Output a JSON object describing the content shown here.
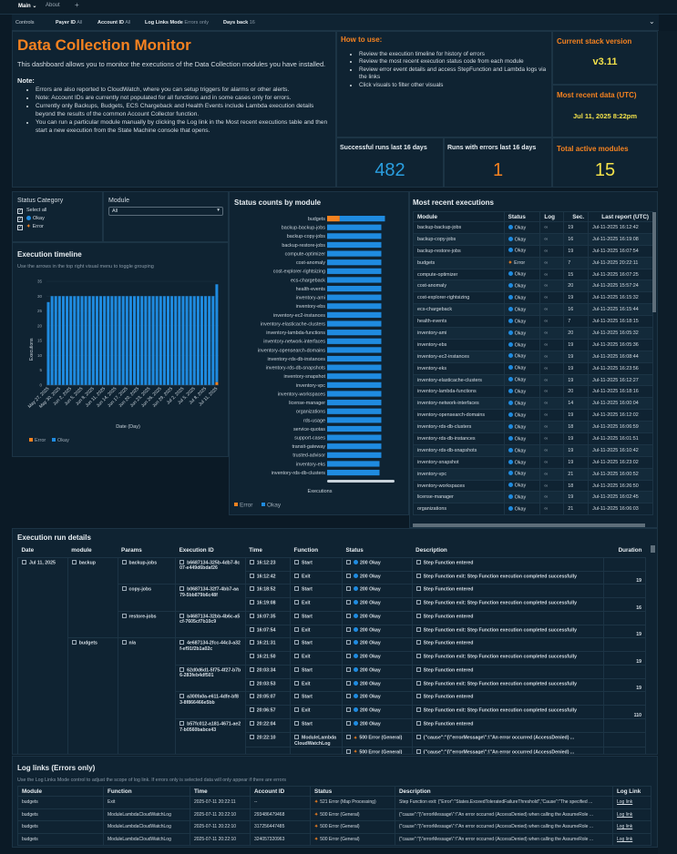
{
  "tabs": {
    "items": [
      "Main",
      "About"
    ],
    "add": "+"
  },
  "controls": {
    "label": "Controls",
    "payer_label": "Payer ID",
    "payer_value": "All",
    "account_label": "Account ID",
    "account_value": "All",
    "loglinks_label": "Log Links Mode",
    "loglinks_value": "Errors only",
    "days_label": "Days back",
    "days_value": "16"
  },
  "intro": {
    "title": "Data Collection Monitor",
    "description": "This dashboard allows you to monitor the executions of the Data Collection modules you have installed.",
    "note_label": "Note:",
    "notes": [
      "Errors are also reported to CloudWatch, where you can setup triggers for alarms or other alerts.",
      "Note: Account IDs are currently not populated for all functions and in some cases only for errors.",
      "Currently only Backups, Budgets, ECS Chargeback and Health Events include Lambda execution details beyond the results of the common Account Collector function.",
      "You can run a particular module manually by clicking the Log link in the Most recent executions table and then start a new execution from the State Machine console that opens."
    ]
  },
  "howto": {
    "title": "How to use:",
    "items": [
      "Review the execution timeline for history of errors",
      "Review the most recent execution status code from each module",
      "Review error event details and access StepFunction and Lambda logs via the links",
      "Click visuals to filter other visuals"
    ]
  },
  "kpis": {
    "version_label": "Current stack version",
    "version": "v3.11",
    "recent_label": "Most recent data (UTC)",
    "recent": "Jul 11, 2025 8:22pm",
    "success_label": "Successful runs last 16 days",
    "success": "482",
    "errors_label": "Runs with errors last 16 days",
    "errors": "1",
    "modules_label": "Total active modules",
    "modules": "15"
  },
  "colors": {
    "error": "#f58220",
    "okay": "#1f8be0",
    "accent_yellow": "#f2e14a"
  },
  "filters": {
    "status_label": "Status Category",
    "options": [
      "Select all",
      "Okay",
      "Error"
    ],
    "module_label": "Module",
    "module_value": "All"
  },
  "chart_data": [
    {
      "type": "bar",
      "title": "Execution timeline",
      "subtitle": "Use the arrows in the top right visual menu to toggle grouping",
      "xlabel": "Date (Day)",
      "ylabel": "Executions",
      "ylim": [
        0,
        35
      ],
      "yticks": [
        0,
        5,
        10,
        15,
        20,
        25,
        30,
        35
      ],
      "stacked": true,
      "categories": [
        "May 27, 2025",
        "May 28, 2025",
        "May 29, 2025",
        "May 30, 2025",
        "May 31, 2025",
        "Jun 1, 2025",
        "Jun 2, 2025",
        "Jun 3, 2025",
        "Jun 4, 2025",
        "Jun 5, 2025",
        "Jun 6, 2025",
        "Jun 7, 2025",
        "Jun 8, 2025",
        "Jun 9, 2025",
        "Jun 10, 2025",
        "Jun 11, 2025",
        "Jun 12, 2025",
        "Jun 13, 2025",
        "Jun 14, 2025",
        "Jun 15, 2025",
        "Jun 16, 2025",
        "Jun 17, 2025",
        "Jun 18, 2025",
        "Jun 19, 2025",
        "Jun 20, 2025",
        "Jun 21, 2025",
        "Jun 22, 2025",
        "Jun 23, 2025",
        "Jun 24, 2025",
        "Jun 25, 2025",
        "Jun 26, 2025",
        "Jun 27, 2025",
        "Jun 28, 2025",
        "Jun 29, 2025",
        "Jun 30, 2025",
        "Jul 1, 2025",
        "Jul 2, 2025",
        "Jul 3, 2025",
        "Jul 4, 2025",
        "Jul 5, 2025",
        "Jul 6, 2025",
        "Jul 7, 2025",
        "Jul 8, 2025",
        "Jul 9, 2025",
        "Jul 10, 2025",
        "Jul 11, 2025"
      ],
      "series": [
        {
          "name": "Error",
          "values": [
            0,
            0,
            0,
            0,
            0,
            0,
            0,
            0,
            0,
            0,
            0,
            0,
            0,
            0,
            0,
            0,
            0,
            0,
            0,
            0,
            0,
            0,
            0,
            0,
            0,
            0,
            0,
            0,
            0,
            0,
            0,
            0,
            0,
            0,
            0,
            0,
            0,
            0,
            0,
            0,
            0,
            0,
            0,
            0,
            0,
            1
          ]
        },
        {
          "name": "Okay",
          "values": [
            28,
            30,
            30,
            30,
            30,
            30,
            30,
            30,
            30,
            30,
            30,
            30,
            30,
            30,
            30,
            30,
            30,
            30,
            30,
            30,
            30,
            30,
            30,
            30,
            30,
            30,
            30,
            30,
            30,
            30,
            30,
            30,
            30,
            30,
            30,
            30,
            30,
            30,
            30,
            30,
            30,
            30,
            30,
            30,
            30,
            33
          ]
        }
      ],
      "legend": "bottom-left"
    },
    {
      "type": "bar",
      "orientation": "horizontal",
      "title": "Status counts by module",
      "xlabel": "Executions",
      "stacked": true,
      "categories": [
        "budgets",
        "backup-backup-jobs",
        "backup-copy-jobs",
        "backup-restore-jobs",
        "compute-optimizer",
        "cost-anomaly",
        "cost-explorer-rightsizing",
        "ecs-chargeback",
        "health-events",
        "inventory-ami",
        "inventory-ebs",
        "inventory-ec2-instances",
        "inventory-elasticache-clusters",
        "inventory-lambda-functions",
        "inventory-network-interfaces",
        "inventory-opensearch-domains",
        "inventory-rds-db-instances",
        "inventory-rds-db-snapshots",
        "inventory-snapshot",
        "inventory-vpc",
        "inventory-workspaces",
        "license-manager",
        "organizations",
        "rds-usage",
        "service-quotas",
        "support-cases",
        "transit-gateway",
        "trusted-advisor",
        "inventory-eks",
        "inventory-rds-db-clusters"
      ],
      "series": [
        {
          "name": "Error",
          "values": [
            7,
            0,
            0,
            0,
            0,
            0,
            0,
            0,
            0,
            0,
            0,
            0,
            0,
            0,
            0,
            0,
            0,
            0,
            0,
            0,
            0,
            0,
            0,
            0,
            0,
            0,
            0,
            0,
            0,
            0
          ]
        },
        {
          "name": "Okay",
          "values": [
            25,
            30,
            30,
            30,
            30,
            30,
            30,
            30,
            30,
            30,
            30,
            30,
            30,
            30,
            30,
            30,
            30,
            30,
            30,
            30,
            30,
            30,
            30,
            30,
            30,
            30,
            30,
            30,
            29,
            29
          ]
        }
      ],
      "xlim": [
        0,
        40
      ],
      "legend": "bottom-left"
    }
  ],
  "recent": {
    "title": "Most recent executions",
    "columns": [
      "Module",
      "Status",
      "Log",
      "Sec.",
      "Last report (UTC)"
    ],
    "rows": [
      [
        "backup-backup-jobs",
        "Okay",
        "19",
        "Jul-11-2025 16:12:42"
      ],
      [
        "backup-copy-jobs",
        "Okay",
        "16",
        "Jul-11-2025 16:19:08"
      ],
      [
        "backup-restore-jobs",
        "Okay",
        "19",
        "Jul-11-2025 16:07:54"
      ],
      [
        "budgets",
        "Error",
        "7",
        "Jul-11-2025 20:22:11"
      ],
      [
        "compute-optimizer",
        "Okay",
        "15",
        "Jul-11-2025 16:07:25"
      ],
      [
        "cost-anomaly",
        "Okay",
        "20",
        "Jul-11-2025 15:57:24"
      ],
      [
        "cost-explorer-rightsizing",
        "Okay",
        "19",
        "Jul-11-2025 16:15:32"
      ],
      [
        "ecs-chargeback",
        "Okay",
        "16",
        "Jul-11-2025 16:15:44"
      ],
      [
        "health-events",
        "Okay",
        "7",
        "Jul-11-2025 16:18:15"
      ],
      [
        "inventory-ami",
        "Okay",
        "20",
        "Jul-11-2025 16:05:32"
      ],
      [
        "inventory-ebs",
        "Okay",
        "19",
        "Jul-11-2025 16:05:36"
      ],
      [
        "inventory-ec2-instances",
        "Okay",
        "19",
        "Jul-11-2025 16:08:44"
      ],
      [
        "inventory-eks",
        "Okay",
        "19",
        "Jul-11-2025 16:23:56"
      ],
      [
        "inventory-elasticache-clusters",
        "Okay",
        "19",
        "Jul-11-2025 16:12:27"
      ],
      [
        "inventory-lambda-functions",
        "Okay",
        "20",
        "Jul-11-2025 16:18:16"
      ],
      [
        "inventory-network-interfaces",
        "Okay",
        "14",
        "Jul-11-2025 16:00:04"
      ],
      [
        "inventory-opensearch-domains",
        "Okay",
        "19",
        "Jul-11-2025 16:12:02"
      ],
      [
        "inventory-rds-db-clusters",
        "Okay",
        "18",
        "Jul-11-2025 16:06:59"
      ],
      [
        "inventory-rds-db-instances",
        "Okay",
        "19",
        "Jul-11-2025 16:01:51"
      ],
      [
        "inventory-rds-db-snapshots",
        "Okay",
        "19",
        "Jul-11-2025 16:10:42"
      ],
      [
        "inventory-snapshot",
        "Okay",
        "19",
        "Jul-11-2025 16:23:02"
      ],
      [
        "inventory-vpc",
        "Okay",
        "21",
        "Jul-11-2025 16:00:52"
      ],
      [
        "inventory-workspaces",
        "Okay",
        "18",
        "Jul-11-2025 16:26:50"
      ],
      [
        "license-manager",
        "Okay",
        "19",
        "Jul-11-2025 16:02:45"
      ],
      [
        "organizations",
        "Okay",
        "21",
        "Jul-11-2025 16:06:03"
      ]
    ]
  },
  "details": {
    "title": "Execution run details",
    "columns": [
      "Date",
      "module",
      "Params",
      "Execution ID",
      "Time",
      "Function",
      "Status",
      "Description",
      "Duration"
    ],
    "rows": [
      [
        "Jul 11, 2025",
        "backup",
        "backup-jobs",
        "b6687134-325b-4db7-8c07-e449d6bdaf26",
        "16:12:23",
        "Start",
        "200 Okay",
        "Step Function entered",
        ""
      ],
      [
        "",
        "",
        "",
        "",
        "16:12:42",
        "Exit",
        "200 Okay",
        "Step Function exit: Step Function execution completed successfully",
        "19"
      ],
      [
        "",
        "",
        "copy-jobs",
        "b0687134-32f7-4bb7-aa79-5bb879b6c48f",
        "16:18:52",
        "Start",
        "200 Okay",
        "Step Function entered",
        ""
      ],
      [
        "",
        "",
        "",
        "",
        "16:19:08",
        "Exit",
        "200 Okay",
        "Step Function exit: Step Function execution completed successfully",
        "16"
      ],
      [
        "",
        "",
        "restore-jobs",
        "b4687134-32bb-4b6c-a5cf-7605cf7b10c9",
        "16:07:35",
        "Start",
        "200 Okay",
        "Step Function entered",
        ""
      ],
      [
        "",
        "",
        "",
        "",
        "16:07:54",
        "Exit",
        "200 Okay",
        "Step Function exit: Step Function execution completed successfully",
        "19"
      ],
      [
        "",
        "budgets",
        "n/a",
        "4e687134-2fcc-44c3-a32f-ef91f2b1a02c",
        "16:21:31",
        "Start",
        "200 Okay",
        "Step Function entered",
        ""
      ],
      [
        "",
        "",
        "",
        "",
        "16:21:50",
        "Exit",
        "200 Okay",
        "Step Function exit: Step Function execution completed successfully",
        "19"
      ],
      [
        "",
        "",
        "",
        "62d0d6d1-5f75-4f27-b7b6-283feb4df501",
        "20:03:34",
        "Start",
        "200 Okay",
        "Step Function entered",
        ""
      ],
      [
        "",
        "",
        "",
        "",
        "20:03:53",
        "Exit",
        "200 Okay",
        "Step Function exit: Step Function execution completed successfully",
        "19"
      ],
      [
        "",
        "",
        "",
        "a300fa0a-e611-4dfe-bf83-8f866466e5bb",
        "20:05:07",
        "Start",
        "200 Okay",
        "Step Function entered",
        ""
      ],
      [
        "",
        "",
        "",
        "",
        "20:06:57",
        "Exit",
        "200 Okay",
        "Step Function exit: Step Function execution completed successfully",
        "110"
      ],
      [
        "",
        "",
        "",
        "b57fc012-a181-4671-ae27-b0560babce43",
        "20:22:04",
        "Start",
        "200 Okay",
        "Step Function entered",
        ""
      ],
      [
        "",
        "",
        "",
        "",
        "20:22:10",
        "ModuleLambdaCloudWatchLog",
        "500 Error (General)",
        "{\"cause\":\"{\\\"errorMessage\\\":\\\"An error occurred (AccessDenied) ...",
        ""
      ],
      [
        "",
        "",
        "",
        "",
        "",
        "",
        "500 Error (General)",
        "{\"cause\":\"{\\\"errorMessage\\\":\\\"An error occurred (AccessDenied) ...",
        ""
      ]
    ]
  },
  "loglinks": {
    "title": "Log links (Errors only)",
    "subtitle": "Use the Log Links Mode control to adjust the scope of log link. If errors only is selected data will only appear if there are errors",
    "columns": [
      "Module",
      "Function",
      "Time",
      "Account ID",
      "Status",
      "Description",
      "Log Link"
    ],
    "rows": [
      [
        "budgets",
        "Exit",
        "2025-07-11 20:22:11",
        "--",
        "521 Error (Map Processing)",
        "Step Function exit: {\"Error\":\"States.ExceedToleratedFailureThreshold\",\"Cause\":\"The specified ...",
        "Log link"
      ],
      [
        "budgets",
        "ModuleLambdaCloudWatchLog",
        "2025-07-11 20:22:10",
        "293486479468",
        "500 Error (General)",
        "{\"cause\":\"{\\\"errorMessage\\\":\\\"An error occurred (AccessDenied) when calling the AssumeRole ...",
        "Log link"
      ],
      [
        "budgets",
        "ModuleLambdaCloudWatchLog",
        "2025-07-11 20:22:10",
        "317256447485",
        "500 Error (General)",
        "{\"cause\":\"{\\\"errorMessage\\\":\\\"An error occurred (AccessDenied) when calling the AssumeRole ...",
        "Log link"
      ],
      [
        "budgets",
        "ModuleLambdaCloudWatchLog",
        "2025-07-11 20:22:10",
        "324057320963",
        "500 Error (General)",
        "{\"cause\":\"{\\\"errorMessage\\\":\\\"An error occurred (AccessDenied) when calling the AssumeRole ...",
        "Log link"
      ]
    ]
  }
}
